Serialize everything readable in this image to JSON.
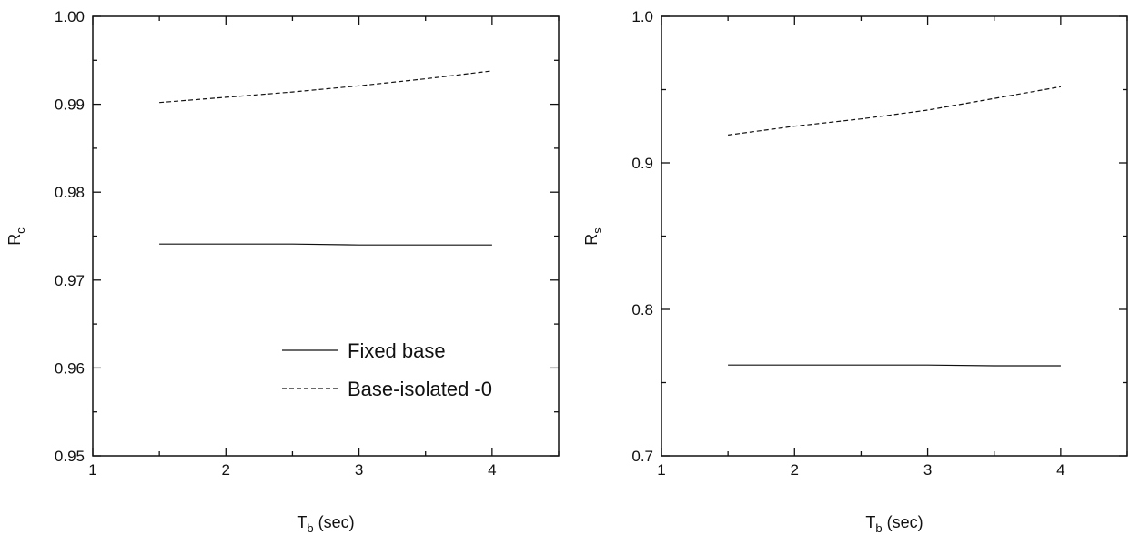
{
  "chart_data": [
    {
      "type": "line",
      "xlabel": "T",
      "xlabel_sub": "b",
      "xlabel_unit": " (sec)",
      "ylabel": "R",
      "ylabel_sub": "c",
      "xlim": [
        1,
        4.5
      ],
      "ylim": [
        0.95,
        1.0
      ],
      "xticks": [
        1,
        2,
        3,
        4
      ],
      "yticks": [
        0.95,
        0.96,
        0.97,
        0.98,
        0.99,
        1.0
      ],
      "ytick_labels": [
        "0.95",
        "0.96",
        "0.97",
        "0.98",
        "0.99",
        "1.00"
      ],
      "grid": false,
      "legend_position": "bottom-right",
      "series": [
        {
          "name": "Fixed base",
          "style": "solid",
          "x": [
            1.5,
            2,
            2.5,
            3,
            3.5,
            4
          ],
          "y": [
            0.9741,
            0.9741,
            0.9741,
            0.974,
            0.974,
            0.974
          ]
        },
        {
          "name": "Base-isolated -0",
          "style": "dashed",
          "x": [
            1.5,
            2,
            2.5,
            3,
            3.5,
            4
          ],
          "y": [
            0.9902,
            0.9908,
            0.9914,
            0.9921,
            0.9929,
            0.9938
          ]
        }
      ]
    },
    {
      "type": "line",
      "xlabel": "T",
      "xlabel_sub": "b",
      "xlabel_unit": " (sec)",
      "ylabel": "R",
      "ylabel_sub": "s",
      "xlim": [
        1,
        4.5
      ],
      "ylim": [
        0.7,
        1.0
      ],
      "xticks": [
        1,
        2,
        3,
        4
      ],
      "yticks": [
        0.7,
        0.8,
        0.9,
        1.0
      ],
      "ytick_labels": [
        "0.7",
        "0.8",
        "0.9",
        "1.0"
      ],
      "grid": false,
      "series": [
        {
          "style": "solid",
          "x": [
            1.5,
            2,
            2.5,
            3,
            3.5,
            4
          ],
          "y": [
            0.762,
            0.762,
            0.762,
            0.762,
            0.7615,
            0.7615
          ]
        },
        {
          "style": "dashed",
          "x": [
            1.5,
            2,
            2.5,
            3,
            3.5,
            4
          ],
          "y": [
            0.919,
            0.925,
            0.93,
            0.936,
            0.944,
            0.952
          ]
        }
      ]
    }
  ]
}
